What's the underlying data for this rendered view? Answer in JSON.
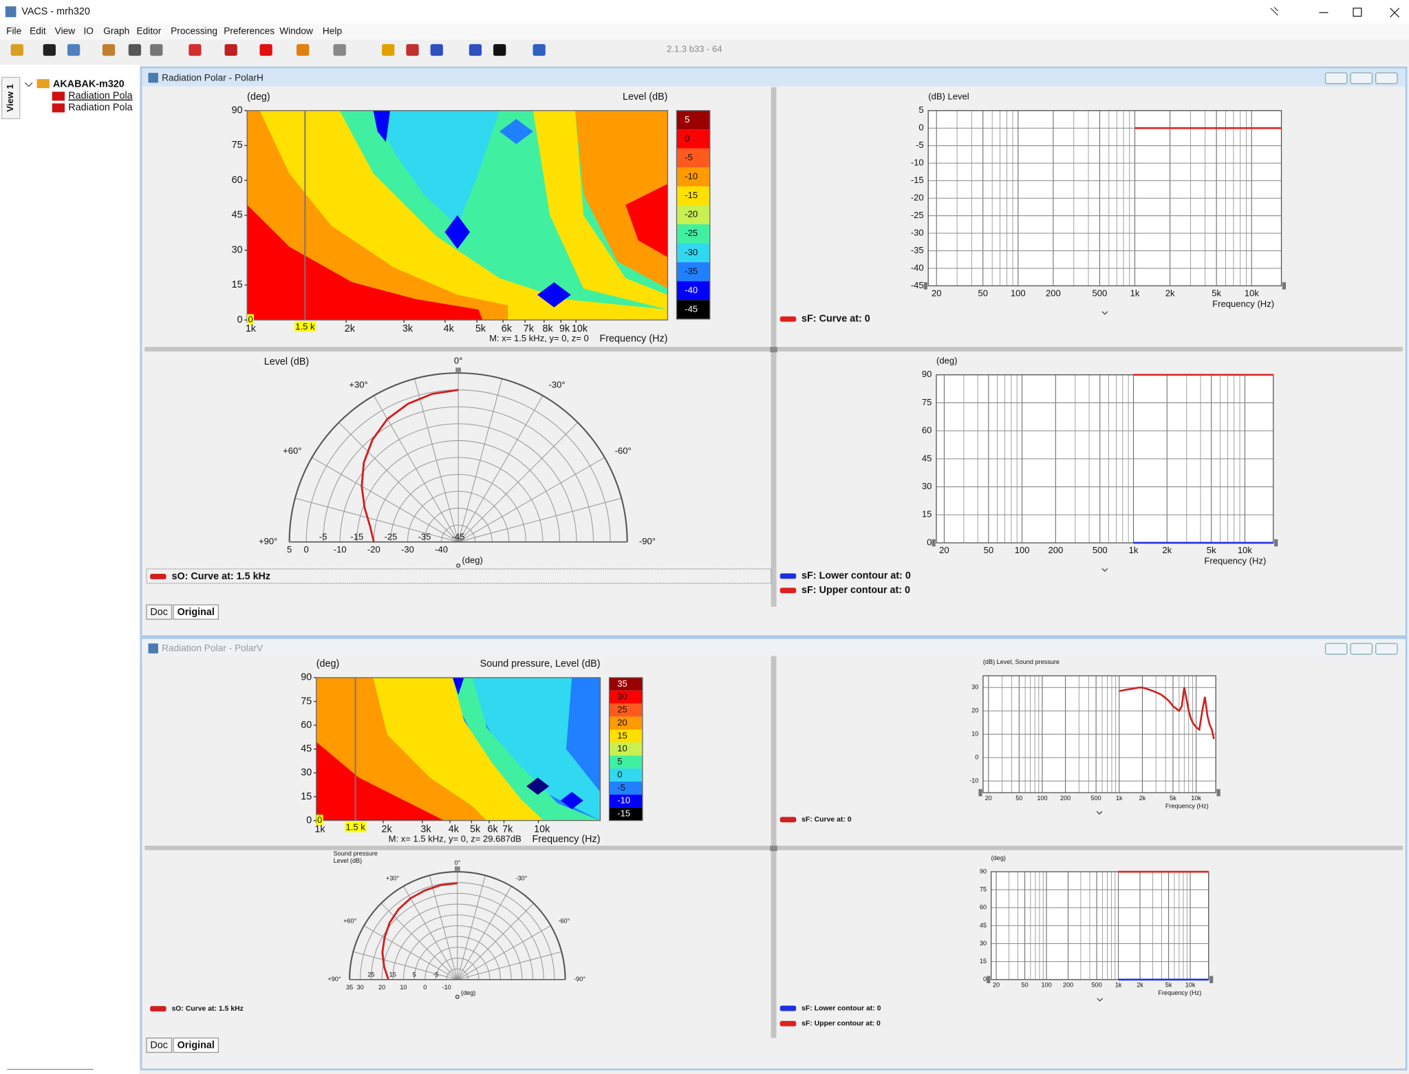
{
  "app": {
    "title": "VACS - mrh320",
    "menu": [
      "File",
      "Edit",
      "View",
      "IO",
      "Graph",
      "Editor",
      "Processing",
      "Preferences",
      "Window",
      "Help"
    ],
    "version": "2.1.3 b33 - 64"
  },
  "sidebar": {
    "tab": "View 1",
    "root": "AKABAK-m320",
    "items": [
      "Radiation Pola",
      "Radiation Pola"
    ]
  },
  "windows": [
    {
      "title": "Radiation Polar - PolarH",
      "tabs": [
        "Doc",
        "Original"
      ],
      "contour": {
        "type": "contour",
        "y_label": "(deg)",
        "z_label": "Level  (dB)",
        "x_label": "Frequency  (Hz)",
        "log_x": true,
        "xlim": [
          1000,
          19000
        ],
        "ylim": [
          0,
          90
        ],
        "xticks": [
          {
            "value": 1000,
            "label": "1k"
          },
          {
            "value": 2000,
            "label": "2k"
          },
          {
            "value": 3000,
            "label": "3k"
          },
          {
            "value": 4000,
            "label": "4k"
          },
          {
            "value": 5000,
            "label": "5k"
          },
          {
            "value": 6000,
            "label": "6k"
          },
          {
            "value": 7000,
            "label": "7k"
          },
          {
            "value": 8000,
            "label": "8k"
          },
          {
            "value": 9000,
            "label": "9k"
          },
          {
            "value": 10000,
            "label": "10k"
          }
        ],
        "yticks": [
          0,
          15,
          30,
          45,
          60,
          75,
          90
        ],
        "colorbar": {
          "ticks": [
            5,
            0,
            -5,
            -10,
            -15,
            -20,
            -25,
            -30,
            -35,
            -40,
            -45
          ],
          "colors": [
            "#9a0000",
            "#ff0000",
            "#ff5a1e",
            "#ff9a00",
            "#ffe000",
            "#c8f050",
            "#40f0a0",
            "#30d8f0",
            "#2080ff",
            "#0000ff",
            "#000000"
          ]
        },
        "cursor": {
          "x": 1500,
          "x_label": "1.5 k",
          "y": 0,
          "y_label": "0",
          "readout": "M:  x= 1.5 kHz,  y= 0, z= 0"
        }
      },
      "level": {
        "type": "line",
        "y_label": "(dB)  Level",
        "x_label": "Frequency  (Hz)",
        "log_x": true,
        "grid": true,
        "xlim": [
          17,
          18000
        ],
        "ylim": [
          -45,
          5
        ],
        "xticks": [
          20,
          50,
          100,
          200,
          500,
          {
            "value": 1000,
            "label": "1k"
          },
          {
            "value": 2000,
            "label": "2k"
          },
          {
            "value": 5000,
            "label": "5k"
          },
          {
            "value": 10000,
            "label": "10k"
          }
        ],
        "minor_xticks": [
          30,
          40,
          60,
          70,
          80,
          90,
          300,
          400,
          600,
          700,
          800,
          900,
          3000,
          4000,
          6000,
          7000,
          8000,
          9000
        ],
        "yticks": [
          5,
          0,
          -5,
          -10,
          -15,
          -20,
          -25,
          -30,
          -35,
          -40,
          -45
        ],
        "series": [
          {
            "name": "sF: Curve at: 0",
            "color": "#e02020",
            "x": [
              1000,
              18000
            ],
            "values": [
              0,
              0
            ]
          }
        ]
      },
      "polar": {
        "type": "polar",
        "r_label": [
          "Level  (dB)"
        ],
        "theta_label": "(deg)",
        "rlim": [
          -45,
          5
        ],
        "rticks": [
          5,
          0,
          -5,
          -10,
          -15,
          -20,
          -25,
          -30,
          -35,
          -40,
          -45
        ],
        "angle_ticks": [
          {
            "value": 0,
            "label": "0°"
          },
          {
            "value": 30,
            "label": "+30°"
          },
          {
            "value": -30,
            "label": "-30°"
          },
          {
            "value": 60,
            "label": "+60°"
          },
          {
            "value": -60,
            "label": "-60°"
          },
          {
            "value": 90,
            "label": "+90°"
          },
          {
            "value": -90,
            "label": "-90°"
          }
        ],
        "spokes": [
          -75,
          -60,
          -45,
          -30,
          -15,
          0,
          15,
          30,
          45,
          60,
          75
        ],
        "series": [
          {
            "name": "sO: Curve at: 1.5 kHz",
            "color": "#d02020",
            "theta": [
              0,
              10,
              20,
              30,
              40,
              50,
              60,
              70,
              80,
              90
            ],
            "values": [
              0,
              -0.5,
              -1.5,
              -3,
              -5.5,
              -8.5,
              -12,
              -15.5,
              -18.5,
              -20
            ]
          }
        ]
      },
      "contour_lines": {
        "type": "line",
        "y_label": "(deg)",
        "x_label": "Frequency  (Hz)",
        "log_x": true,
        "grid": true,
        "xlim": [
          17,
          18000
        ],
        "ylim": [
          0,
          90
        ],
        "xticks": [
          20,
          50,
          100,
          200,
          500,
          {
            "value": 1000,
            "label": "1k"
          },
          {
            "value": 2000,
            "label": "2k"
          },
          {
            "value": 5000,
            "label": "5k"
          },
          {
            "value": 10000,
            "label": "10k"
          }
        ],
        "minor_xticks": [
          30,
          40,
          60,
          70,
          80,
          90,
          300,
          400,
          600,
          700,
          800,
          900,
          3000,
          4000,
          6000,
          7000,
          8000,
          9000
        ],
        "yticks": [
          0,
          15,
          30,
          45,
          60,
          75,
          90
        ],
        "series": [
          {
            "name": "sF: Lower contour at: 0",
            "color": "#2030e0",
            "x": [
              1000,
              18000
            ],
            "values": [
              0,
              0
            ]
          },
          {
            "name": "sF: Upper contour at: 0",
            "color": "#e02020",
            "x": [
              1000,
              18000
            ],
            "values": [
              90,
              90
            ]
          }
        ]
      }
    },
    {
      "title": "Radiation Polar - PolarV",
      "tabs": [
        "Doc",
        "Original"
      ],
      "contour": {
        "type": "contour",
        "y_label": "(deg)",
        "z_label": "Sound pressure, Level  (dB)",
        "x_label": "Frequency  (Hz)",
        "log_x": true,
        "xlim": [
          1000,
          19000
        ],
        "ylim": [
          0,
          90
        ],
        "xticks": [
          {
            "value": 1000,
            "label": "1k"
          },
          {
            "value": 2000,
            "label": "2k"
          },
          {
            "value": 3000,
            "label": "3k"
          },
          {
            "value": 4000,
            "label": "4k"
          },
          {
            "value": 5000,
            "label": "5k"
          },
          {
            "value": 6000,
            "label": "6k"
          },
          {
            "value": 7000,
            "label": "7k"
          },
          {
            "value": 10000,
            "label": "10k"
          }
        ],
        "yticks": [
          0,
          15,
          30,
          45,
          60,
          75,
          90
        ],
        "colorbar": {
          "ticks": [
            35,
            30,
            25,
            20,
            15,
            10,
            5,
            0,
            -5,
            -10,
            -15
          ],
          "colors": [
            "#9a0000",
            "#ff0000",
            "#ff5a1e",
            "#ff9a00",
            "#ffe000",
            "#c8f050",
            "#40f0a0",
            "#30d8f0",
            "#2080ff",
            "#0000ff",
            "#000000"
          ]
        },
        "cursor": {
          "x": 1500,
          "x_label": "1.5 k",
          "y": 0,
          "y_label": "0",
          "readout": "M:  x= 1.5 kHz,  y= 0, z= 29.687dB"
        }
      },
      "level": {
        "type": "line",
        "y_label": "(dB)  Level, Sound pressure",
        "x_label": "Frequency  (Hz)",
        "log_x": true,
        "grid": true,
        "xlim": [
          17,
          18000
        ],
        "ylim": [
          -15,
          35
        ],
        "xticks": [
          20,
          50,
          100,
          200,
          500,
          {
            "value": 1000,
            "label": "1k"
          },
          {
            "value": 2000,
            "label": "2k"
          },
          {
            "value": 5000,
            "label": "5k"
          },
          {
            "value": 10000,
            "label": "10k"
          }
        ],
        "minor_xticks": [
          30,
          40,
          60,
          70,
          80,
          90,
          300,
          400,
          600,
          700,
          800,
          900,
          3000,
          4000,
          6000,
          7000,
          8000,
          9000
        ],
        "yticks": [
          30,
          20,
          10,
          0,
          -10
        ],
        "series": [
          {
            "name": "sF: Curve at: 0",
            "color": "#d02020",
            "x": [
              1000,
              1200,
              1500,
              1800,
              2000,
              2500,
              3000,
              3500,
              4000,
              4500,
              5000,
              5500,
              6000,
              6500,
              7000,
              7500,
              8000,
              8500,
              9000,
              10000,
              11000,
              12000,
              13000,
              14000,
              15000,
              16000,
              17000
            ],
            "values": [
              28.5,
              29,
              29.5,
              30,
              30,
              29,
              28,
              27,
              25.5,
              24,
              22,
              21,
              20,
              22,
              30,
              25,
              20,
              17,
              15,
              13,
              12,
              20,
              26,
              18,
              14,
              12,
              8
            ]
          }
        ]
      },
      "polar": {
        "type": "polar",
        "r_label": [
          "Sound pressure",
          "Level  (dB)"
        ],
        "theta_label": "(deg)",
        "rlim": [
          -15,
          35
        ],
        "rticks": [
          35,
          30,
          25,
          20,
          15,
          10,
          5,
          0,
          -5,
          -10
        ],
        "angle_ticks": [
          {
            "value": 0,
            "label": "0°"
          },
          {
            "value": 30,
            "label": "+30°"
          },
          {
            "value": -30,
            "label": "-30°"
          },
          {
            "value": 60,
            "label": "+60°"
          },
          {
            "value": -60,
            "label": "-60°"
          },
          {
            "value": 90,
            "label": "+90°"
          },
          {
            "value": -90,
            "label": "-90°"
          }
        ],
        "spokes": [
          -75,
          -60,
          -45,
          -30,
          -15,
          0,
          15,
          30,
          45,
          60,
          75
        ],
        "series": [
          {
            "name": "sO: Curve at: 1.5 kHz",
            "color": "#d02020",
            "theta": [
              0,
              10,
              20,
              30,
              40,
              50,
              60,
              70,
              80,
              90
            ],
            "values": [
              29.7,
              29.5,
              29,
              28.5,
              27.5,
              26,
              24,
              22,
              19.5,
              17
            ]
          }
        ]
      },
      "contour_lines": {
        "type": "line",
        "y_label": "(deg)",
        "x_label": "Frequency  (Hz)",
        "log_x": true,
        "grid": true,
        "xlim": [
          17,
          18000
        ],
        "ylim": [
          0,
          90
        ],
        "xticks": [
          20,
          50,
          100,
          200,
          500,
          {
            "value": 1000,
            "label": "1k"
          },
          {
            "value": 2000,
            "label": "2k"
          },
          {
            "value": 5000,
            "label": "5k"
          },
          {
            "value": 10000,
            "label": "10k"
          }
        ],
        "minor_xticks": [
          30,
          40,
          60,
          70,
          80,
          90,
          300,
          400,
          600,
          700,
          800,
          900,
          3000,
          4000,
          6000,
          7000,
          8000,
          9000
        ],
        "yticks": [
          0,
          15,
          30,
          45,
          60,
          75,
          90
        ],
        "series": [
          {
            "name": "sF: Lower contour at: 0",
            "color": "#2030e0",
            "x": [
              1000,
              18000
            ],
            "values": [
              0,
              0
            ]
          },
          {
            "name": "sF: Upper contour at: 0",
            "color": "#e02020",
            "x": [
              1000,
              18000
            ],
            "values": [
              90,
              90
            ]
          }
        ]
      }
    }
  ]
}
